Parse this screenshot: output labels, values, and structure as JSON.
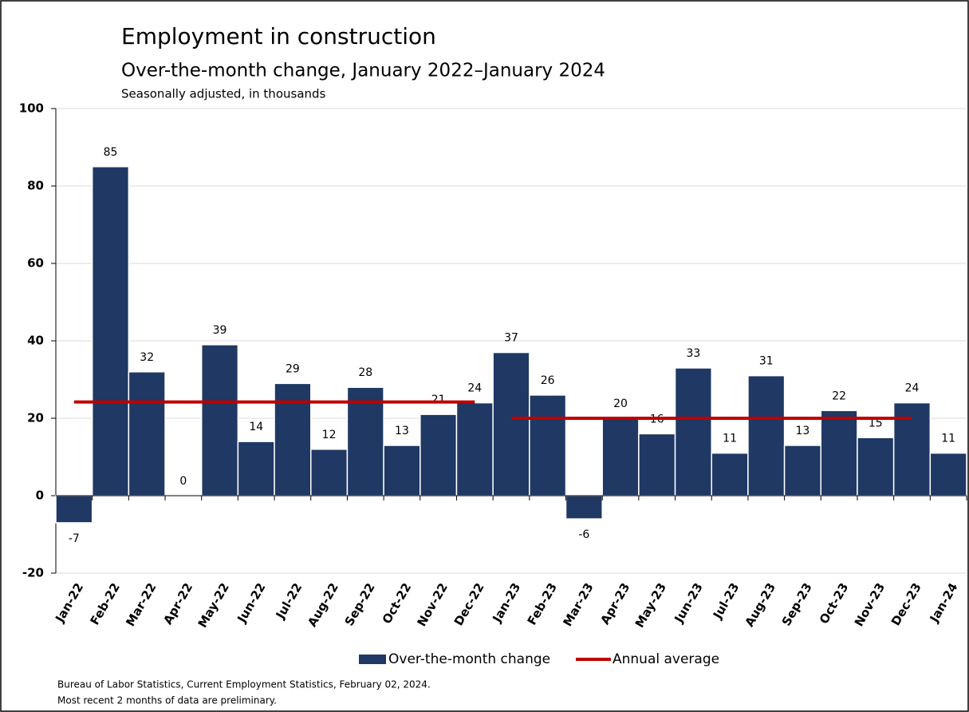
{
  "chart_data": {
    "type": "bar",
    "title": "Employment in construction",
    "subtitle": "Over-the-month change, January 2022–January 2024",
    "note": "Seasonally adjusted, in thousands",
    "categories": [
      "Jan-22",
      "Feb-22",
      "Mar-22",
      "Apr-22",
      "May-22",
      "Jun-22",
      "Jul-22",
      "Aug-22",
      "Sep-22",
      "Oct-22",
      "Nov-22",
      "Dec-22",
      "Jan-23",
      "Feb-23",
      "Mar-23",
      "Apr-23",
      "May-23",
      "Jun-23",
      "Jul-23",
      "Aug-23",
      "Sep-23",
      "Oct-23",
      "Nov-23",
      "Dec-23",
      "Jan-24"
    ],
    "series": [
      {
        "name": "Over-the-month change",
        "type": "bar",
        "color": "#1f3864",
        "values": [
          -7,
          85,
          32,
          0,
          39,
          14,
          29,
          12,
          28,
          13,
          21,
          24,
          37,
          26,
          -6,
          20,
          16,
          33,
          11,
          31,
          13,
          22,
          15,
          24,
          11
        ]
      },
      {
        "name": "Annual average",
        "type": "line",
        "color": "#c00000",
        "values": [
          24.2,
          24.2,
          24.2,
          24.2,
          24.2,
          24.2,
          24.2,
          24.2,
          24.2,
          24.2,
          24.2,
          24.2,
          20,
          20,
          20,
          20,
          20,
          20,
          20,
          20,
          20,
          20,
          20,
          20,
          null
        ]
      }
    ],
    "ylim": [
      -20,
      100
    ],
    "yticks": [
      -20,
      0,
      20,
      40,
      60,
      80,
      100
    ],
    "grid": true,
    "legend": "bottom",
    "footer": [
      "Bureau of Labor Statistics, Current Employment Statistics, February 02, 2024.",
      "Most recent 2 months of data are preliminary."
    ]
  }
}
